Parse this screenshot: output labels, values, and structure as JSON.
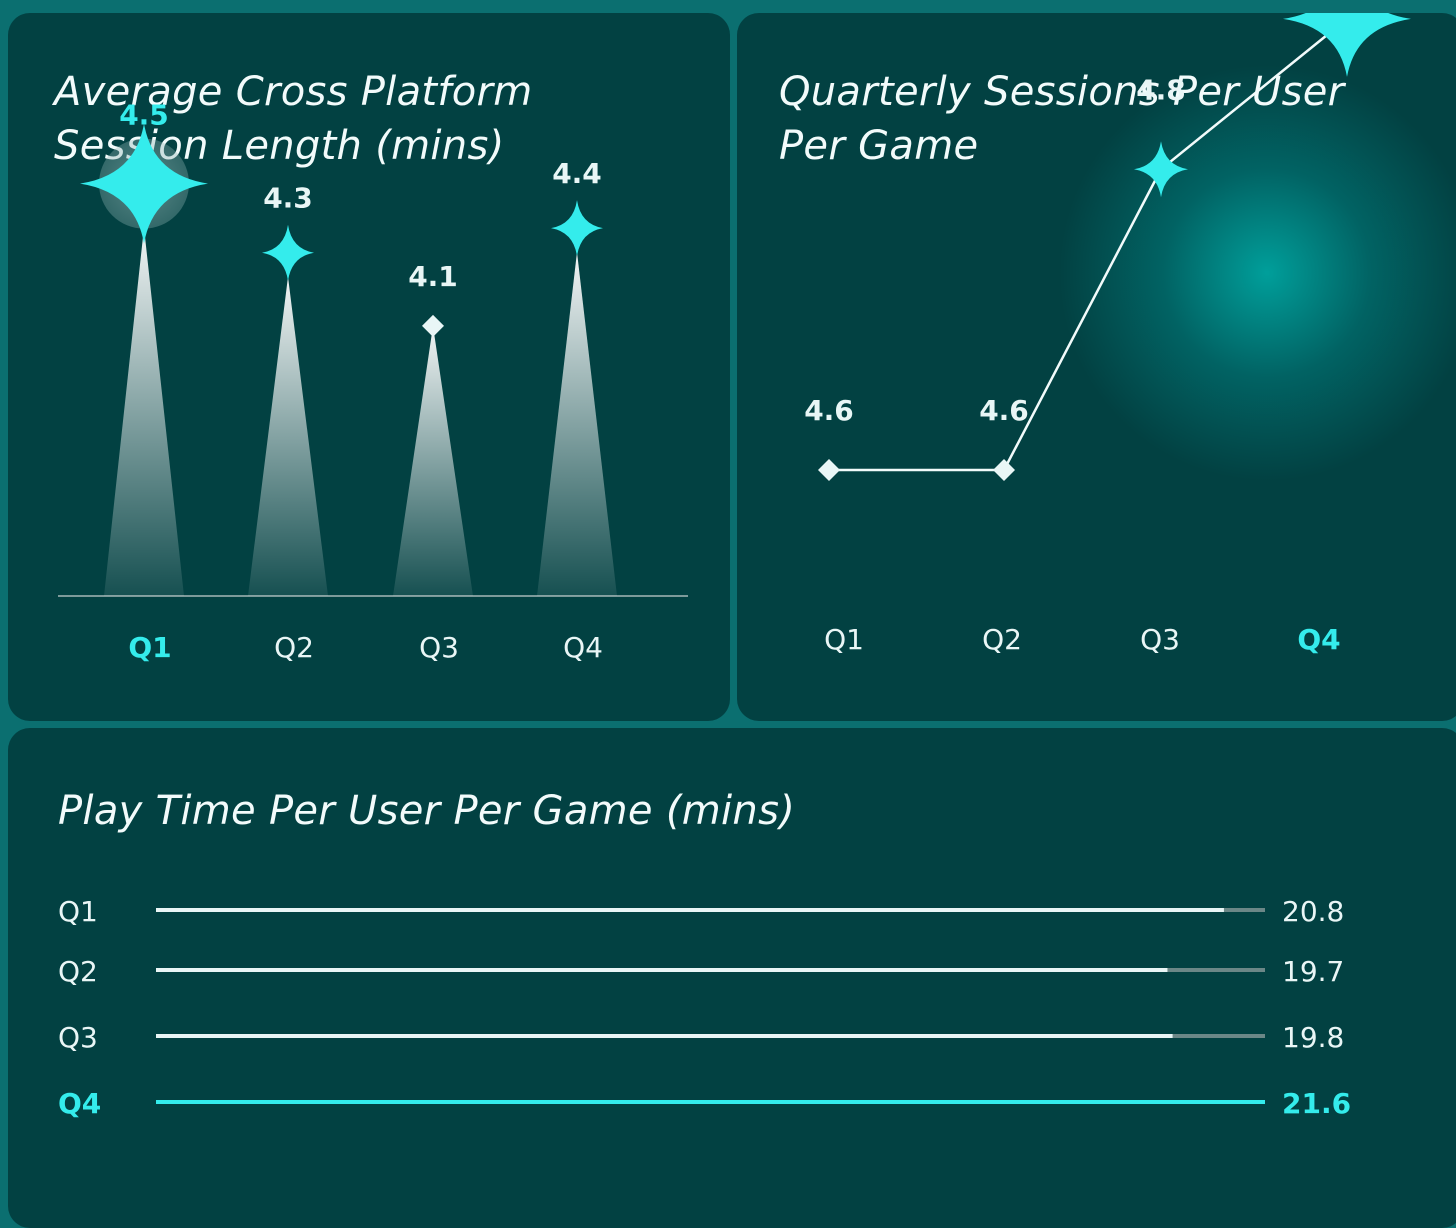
{
  "chart_data": [
    {
      "type": "bar",
      "title": "Average Cross Platform Session Length (mins)",
      "categories": [
        "Q1",
        "Q2",
        "Q3",
        "Q4"
      ],
      "values": [
        4.5,
        4.3,
        4.1,
        4.4
      ],
      "highlight": "Q1",
      "ylim": [
        3.0,
        4.6
      ],
      "colors": {
        "highlight": "#34ecec",
        "normal": "#e9f6f6",
        "axis": "#7d9a9a"
      }
    },
    {
      "type": "line",
      "title": "Quarterly Sessions Per User Per Game",
      "categories": [
        "Q1",
        "Q2",
        "Q3",
        "Q4"
      ],
      "values": [
        4.6,
        4.6,
        4.8,
        4.9
      ],
      "highlight": "Q4",
      "ylim": [
        4.45,
        5.0
      ],
      "colors": {
        "highlight": "#34ecec",
        "normal": "#e9f6f6"
      }
    },
    {
      "type": "bar",
      "orientation": "horizontal",
      "title": "Play Time Per User Per Game (mins)",
      "categories": [
        "Q1",
        "Q2",
        "Q3",
        "Q4"
      ],
      "values": [
        20.8,
        19.7,
        19.8,
        21.6
      ],
      "labels": [
        "20.8",
        "19.7",
        "19.8",
        "21.6"
      ],
      "highlight": "Q4",
      "xlim": [
        0,
        21.6
      ],
      "colors": {
        "highlight": "#34ecec",
        "normal": "#e9f6f6",
        "track": "#6b8787"
      }
    }
  ]
}
